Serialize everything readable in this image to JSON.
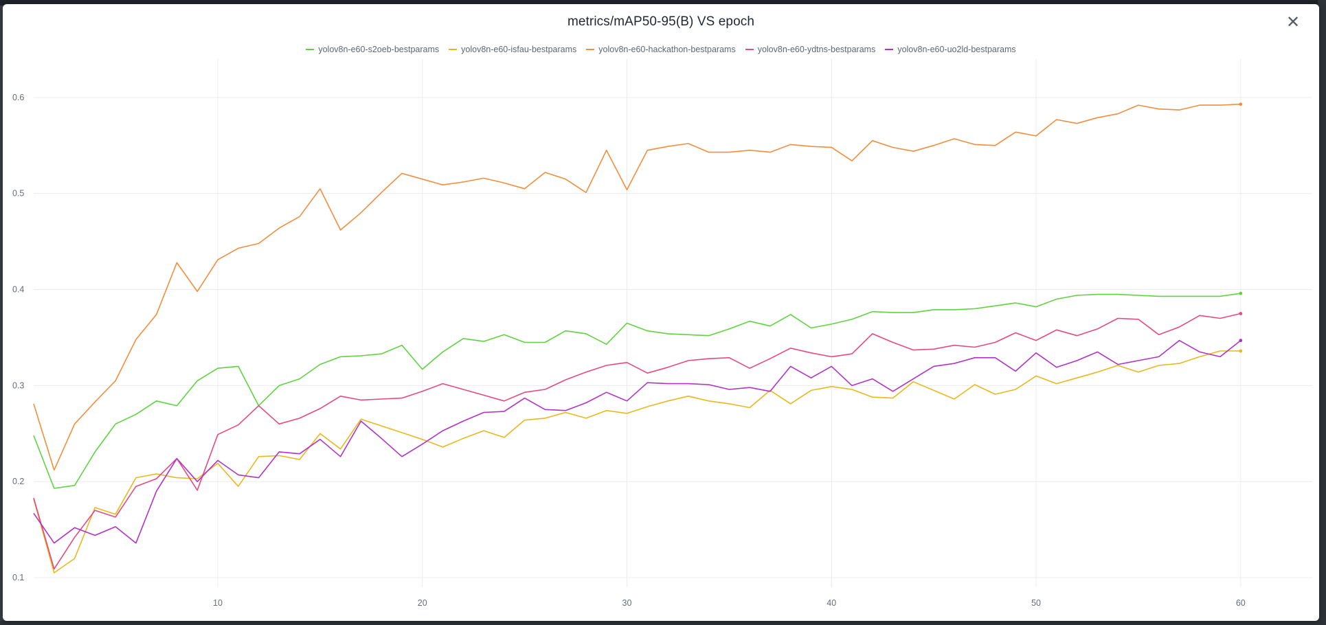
{
  "window": {
    "title": "metrics/mAP50-95(B) VS epoch",
    "close_icon": "close-icon"
  },
  "chart_data": {
    "type": "line",
    "title": "metrics/mAP50-95(B) VS epoch",
    "xlabel": "",
    "ylabel": "",
    "xlim": [
      1,
      63.5
    ],
    "ylim": [
      0.09,
      0.64
    ],
    "xticks": [
      10,
      20,
      30,
      40,
      50,
      60
    ],
    "yticks": [
      0.1,
      0.2,
      0.3,
      0.4,
      0.5,
      0.6
    ],
    "grid": true,
    "legend_position": "top-center",
    "x": [
      1,
      2,
      3,
      4,
      5,
      6,
      7,
      8,
      9,
      10,
      11,
      12,
      13,
      14,
      15,
      16,
      17,
      18,
      19,
      20,
      21,
      22,
      23,
      24,
      25,
      26,
      27,
      28,
      29,
      30,
      31,
      32,
      33,
      34,
      35,
      36,
      37,
      38,
      39,
      40,
      41,
      42,
      43,
      44,
      45,
      46,
      47,
      48,
      49,
      50,
      51,
      52,
      53,
      54,
      55,
      56,
      57,
      58,
      59,
      60
    ],
    "series": [
      {
        "name": "yolov8n-e60-s2oeb-bestparams",
        "color": "#5fd33f",
        "values": [
          0.248,
          0.193,
          0.196,
          0.231,
          0.26,
          0.27,
          0.284,
          0.279,
          0.305,
          0.318,
          0.32,
          0.279,
          0.3,
          0.307,
          0.322,
          0.33,
          0.331,
          0.333,
          0.342,
          0.317,
          0.335,
          0.349,
          0.346,
          0.353,
          0.345,
          0.345,
          0.357,
          0.354,
          0.343,
          0.365,
          0.357,
          0.354,
          0.353,
          0.352,
          0.359,
          0.367,
          0.362,
          0.374,
          0.36,
          0.364,
          0.369,
          0.377,
          0.376,
          0.376,
          0.379,
          0.379,
          0.38,
          0.383,
          0.386,
          0.382,
          0.39,
          0.394,
          0.395,
          0.395,
          0.394,
          0.393,
          0.393,
          0.393,
          0.393,
          0.396
        ]
      },
      {
        "name": "yolov8n-e60-isfau-bestparams",
        "color": "#eab71c",
        "values": [
          0.182,
          0.105,
          0.12,
          0.173,
          0.166,
          0.204,
          0.208,
          0.204,
          0.203,
          0.219,
          0.195,
          0.226,
          0.227,
          0.223,
          0.25,
          0.234,
          0.265,
          0.258,
          0.251,
          0.244,
          0.236,
          0.245,
          0.253,
          0.246,
          0.264,
          0.266,
          0.272,
          0.266,
          0.274,
          0.271,
          0.278,
          0.284,
          0.289,
          0.284,
          0.281,
          0.277,
          0.295,
          0.281,
          0.295,
          0.299,
          0.296,
          0.288,
          0.287,
          0.304,
          0.295,
          0.286,
          0.301,
          0.291,
          0.296,
          0.31,
          0.302,
          0.308,
          0.314,
          0.321,
          0.314,
          0.321,
          0.323,
          0.33,
          0.336,
          0.336
        ]
      },
      {
        "name": "yolov8n-e60-hackathon-bestparams",
        "color": "#f48c3c",
        "values": [
          0.281,
          0.212,
          0.26,
          0.283,
          0.305,
          0.348,
          0.374,
          0.428,
          0.398,
          0.431,
          0.443,
          0.448,
          0.464,
          0.476,
          0.505,
          0.462,
          0.48,
          0.501,
          0.521,
          0.515,
          0.509,
          0.512,
          0.516,
          0.511,
          0.505,
          0.522,
          0.515,
          0.501,
          0.545,
          0.504,
          0.545,
          0.549,
          0.552,
          0.543,
          0.543,
          0.545,
          0.543,
          0.551,
          0.549,
          0.548,
          0.534,
          0.555,
          0.548,
          0.544,
          0.55,
          0.557,
          0.551,
          0.55,
          0.564,
          0.56,
          0.577,
          0.573,
          0.579,
          0.583,
          0.592,
          0.588,
          0.587,
          0.592,
          0.592,
          0.593
        ]
      },
      {
        "name": "yolov8n-e60-ydtns-bestparams",
        "color": "#e74880",
        "values": [
          0.183,
          0.109,
          0.142,
          0.17,
          0.163,
          0.195,
          0.203,
          0.224,
          0.191,
          0.249,
          0.259,
          0.279,
          0.26,
          0.266,
          0.276,
          0.289,
          0.285,
          0.286,
          0.287,
          0.294,
          0.302,
          0.296,
          0.29,
          0.284,
          0.293,
          0.296,
          0.306,
          0.314,
          0.321,
          0.324,
          0.313,
          0.319,
          0.326,
          0.328,
          0.329,
          0.318,
          0.328,
          0.339,
          0.334,
          0.33,
          0.333,
          0.354,
          0.345,
          0.337,
          0.338,
          0.342,
          0.34,
          0.345,
          0.355,
          0.347,
          0.358,
          0.352,
          0.359,
          0.37,
          0.369,
          0.353,
          0.361,
          0.373,
          0.37,
          0.375
        ]
      },
      {
        "name": "yolov8n-e60-uo2ld-bestparams",
        "color": "#b032c6",
        "values": [
          0.167,
          0.136,
          0.152,
          0.144,
          0.153,
          0.136,
          0.19,
          0.224,
          0.2,
          0.222,
          0.207,
          0.204,
          0.231,
          0.229,
          0.244,
          0.226,
          0.263,
          0.245,
          0.226,
          0.239,
          0.253,
          0.263,
          0.272,
          0.273,
          0.287,
          0.275,
          0.274,
          0.282,
          0.293,
          0.284,
          0.303,
          0.302,
          0.302,
          0.301,
          0.296,
          0.298,
          0.294,
          0.32,
          0.308,
          0.32,
          0.3,
          0.307,
          0.294,
          0.307,
          0.32,
          0.323,
          0.329,
          0.329,
          0.315,
          0.334,
          0.319,
          0.326,
          0.335,
          0.322,
          0.326,
          0.33,
          0.347,
          0.335,
          0.33,
          0.347
        ]
      }
    ]
  }
}
